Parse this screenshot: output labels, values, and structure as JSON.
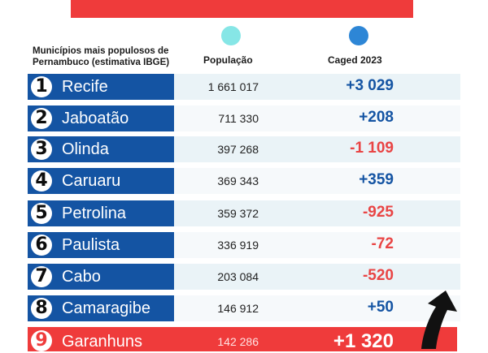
{
  "header": {
    "label_line1": "Municípios mais populosos de",
    "label_line2": "Pernambuco (estimativa IBGE)",
    "col_population": "População",
    "col_caged": "Caged 2023"
  },
  "colors": {
    "banner_red": "#ef3b3b",
    "name_blue": "#1454a3",
    "dot_population": "#86e6e6",
    "dot_caged": "#2d86d6",
    "positive": "#1454a3",
    "negative": "#e94444"
  },
  "rows": [
    {
      "rank": "1",
      "city": "Recife",
      "population": "1 661 017",
      "caged": "+3 029",
      "sign": "pos"
    },
    {
      "rank": "2",
      "city": "Jaboatão",
      "population": "711 330",
      "caged": "+208",
      "sign": "pos"
    },
    {
      "rank": "3",
      "city": "Olinda",
      "population": "397 268",
      "caged": "-1 109",
      "sign": "neg"
    },
    {
      "rank": "4",
      "city": "Caruaru",
      "population": "369 343",
      "caged": "+359",
      "sign": "pos"
    },
    {
      "rank": "5",
      "city": "Petrolina",
      "population": "359 372",
      "caged": "-925",
      "sign": "neg"
    },
    {
      "rank": "6",
      "city": "Paulista",
      "population": "336 919",
      "caged": "-72",
      "sign": "neg"
    },
    {
      "rank": "7",
      "city": "Cabo",
      "population": "203 084",
      "caged": "-520",
      "sign": "neg"
    },
    {
      "rank": "8",
      "city": "Camaragibe",
      "population": "146 912",
      "caged": "+50",
      "sign": "pos"
    },
    {
      "rank": "9",
      "city": "Garanhuns",
      "population": "142 286",
      "caged": "+1 320",
      "sign": "pos",
      "highlight": true
    }
  ],
  "icons": {
    "trend": "trend-up-arrow-icon"
  }
}
